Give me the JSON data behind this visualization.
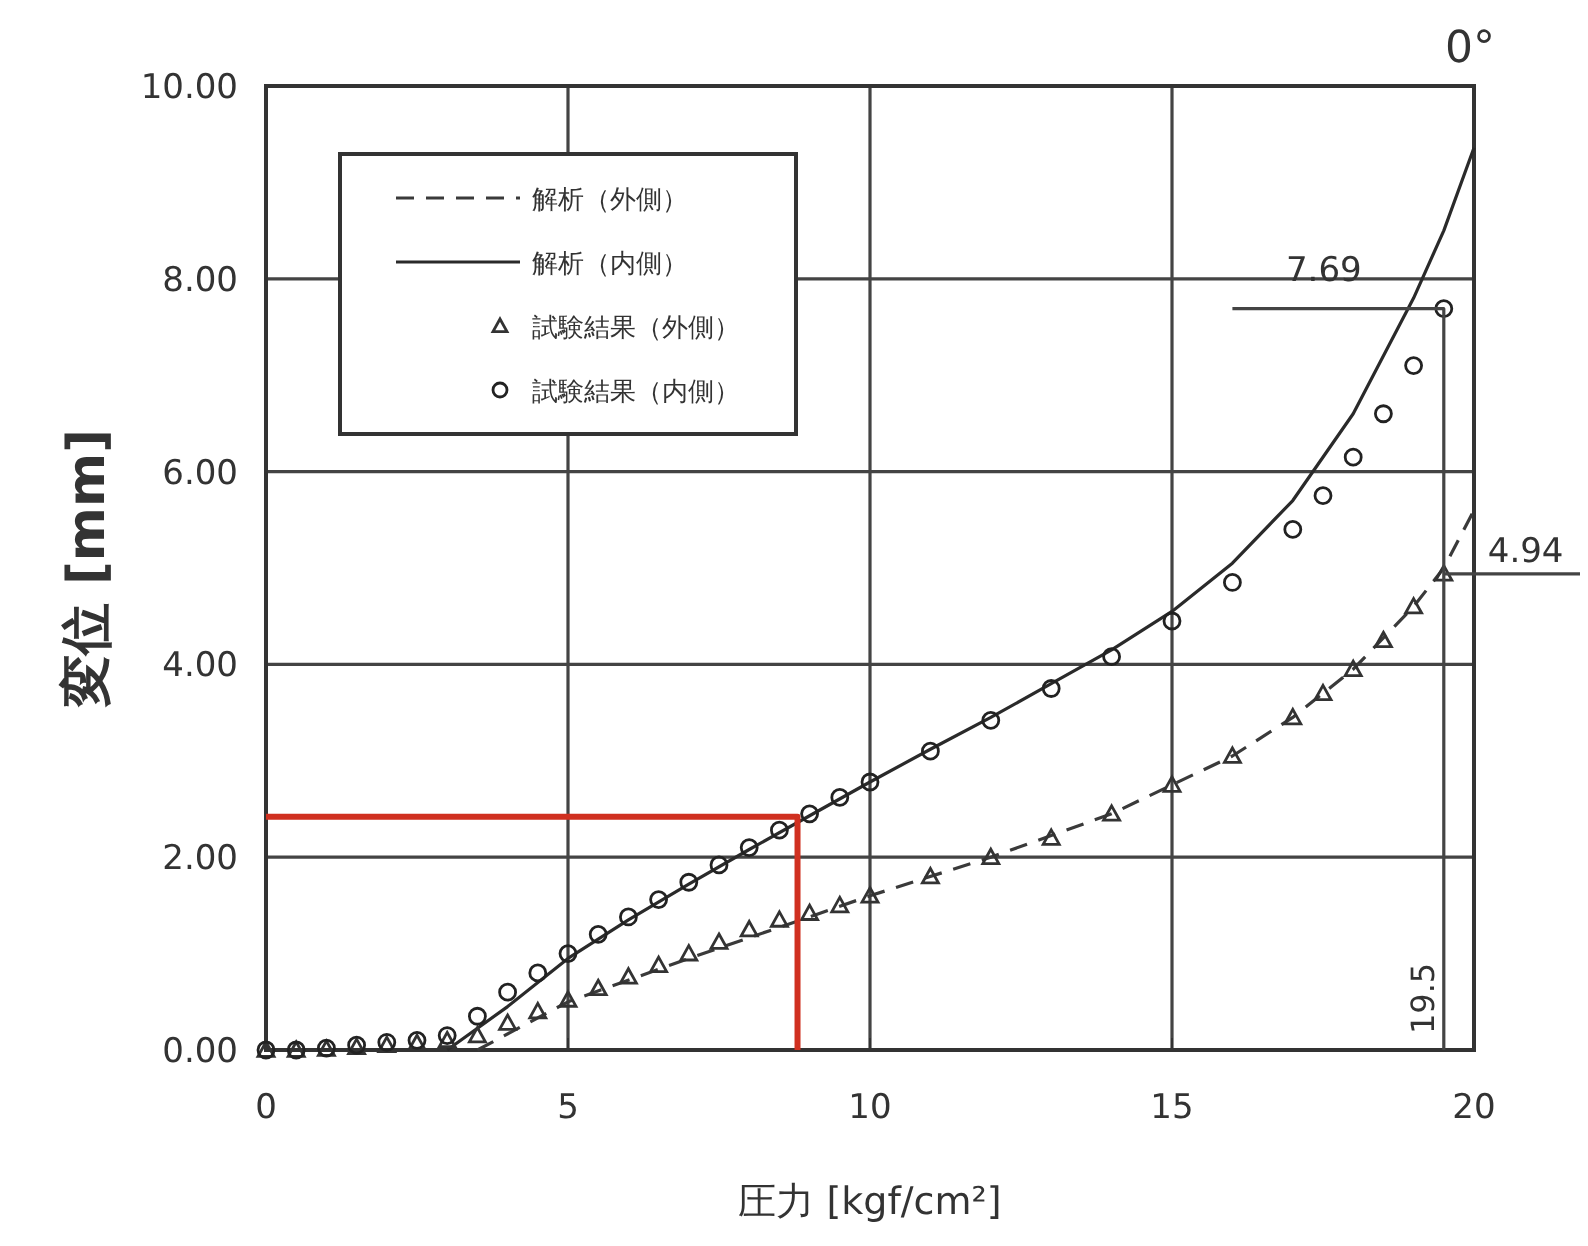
{
  "chart_data": {
    "type": "line",
    "xlabel": "圧力 [kgf/cm²]",
    "ylabel": "変位 [mm]",
    "xlim": [
      0,
      20
    ],
    "ylim": [
      0,
      10
    ],
    "xticks": [
      0,
      5,
      10,
      15,
      20
    ],
    "yticks": [
      {
        "value": 0,
        "label": "0.00"
      },
      {
        "value": 2,
        "label": "2.00"
      },
      {
        "value": 4,
        "label": "4.00"
      },
      {
        "value": 6,
        "label": "6.00"
      },
      {
        "value": 8,
        "label": "8.00"
      },
      {
        "value": 10,
        "label": "10.00"
      }
    ],
    "grid": true,
    "legend": "top left",
    "series": [
      {
        "name": "解析（外側）",
        "line_style": "dashed",
        "marker": "none",
        "color": "#3a3a3a",
        "x": [
          3.5,
          5,
          7,
          9,
          10,
          12,
          14,
          15,
          16,
          17,
          18,
          19,
          19.5,
          20
        ],
        "values": [
          0,
          0.5,
          0.95,
          1.38,
          1.6,
          2.0,
          2.45,
          2.75,
          3.05,
          3.45,
          3.95,
          4.6,
          5.0,
          5.6
        ]
      },
      {
        "name": "解析（内側）",
        "line_style": "solid",
        "marker": "none",
        "color": "#2a2a2a",
        "x": [
          3,
          4,
          5,
          6,
          7,
          8,
          9,
          10,
          11,
          12,
          13,
          14,
          15,
          16,
          17,
          18,
          19,
          19.5,
          20
        ],
        "values": [
          0,
          0.45,
          0.95,
          1.35,
          1.72,
          2.08,
          2.43,
          2.78,
          3.12,
          3.45,
          3.8,
          4.15,
          4.55,
          5.05,
          5.7,
          6.6,
          7.8,
          8.5,
          9.36
        ]
      },
      {
        "name": "試験結果（外側）",
        "type": "scatter",
        "marker": "triangle",
        "color": "#333333",
        "x": [
          0,
          0.5,
          1,
          1.5,
          2,
          2.5,
          3,
          3.5,
          4,
          4.5,
          5,
          5.5,
          6,
          6.5,
          7,
          7.5,
          8,
          8.5,
          9,
          9.5,
          10,
          11,
          12,
          13,
          14,
          15,
          16,
          17,
          17.5,
          18,
          18.5,
          19,
          19.5
        ],
        "values": [
          0,
          0,
          0.01,
          0.03,
          0.05,
          0.07,
          0.1,
          0.15,
          0.28,
          0.4,
          0.52,
          0.64,
          0.76,
          0.88,
          1.0,
          1.12,
          1.25,
          1.35,
          1.42,
          1.5,
          1.6,
          1.8,
          2.0,
          2.2,
          2.45,
          2.75,
          3.05,
          3.45,
          3.7,
          3.95,
          4.25,
          4.6,
          4.94
        ]
      },
      {
        "name": "試験結果（内側）",
        "type": "scatter",
        "marker": "circle",
        "color": "#222222",
        "x": [
          0,
          0.5,
          1,
          1.5,
          2,
          2.5,
          3,
          3.5,
          4,
          4.5,
          5,
          5.5,
          6,
          6.5,
          7,
          7.5,
          8,
          8.5,
          9,
          9.5,
          10,
          11,
          12,
          13,
          14,
          15,
          16,
          17,
          17.5,
          18,
          18.5,
          19,
          19.5
        ],
        "values": [
          0,
          0,
          0.02,
          0.05,
          0.08,
          0.1,
          0.15,
          0.35,
          0.6,
          0.8,
          1.0,
          1.2,
          1.38,
          1.56,
          1.74,
          1.92,
          2.1,
          2.28,
          2.45,
          2.62,
          2.78,
          3.1,
          3.42,
          3.75,
          4.08,
          4.45,
          4.85,
          5.4,
          5.75,
          6.15,
          6.6,
          7.1,
          7.69
        ]
      },
      {
        "line_style": "solid",
        "marker": "none",
        "color": "#d03020",
        "x": [
          0,
          8.8,
          8.8
        ],
        "values": [
          2.42,
          2.42,
          0
        ]
      },
      {
        "line_style": "solid",
        "marker": "none",
        "color": "#444444",
        "x": [
          16,
          19.5,
          19.5
        ],
        "values": [
          7.69,
          7.69,
          0
        ]
      }
    ],
    "annotations": [
      "0°",
      {
        "text": "7.69",
        "x": 19.5,
        "y": 7.69
      },
      {
        "text": "4.94",
        "x": 19.5,
        "y": 4.94
      },
      "19.5"
    ]
  }
}
